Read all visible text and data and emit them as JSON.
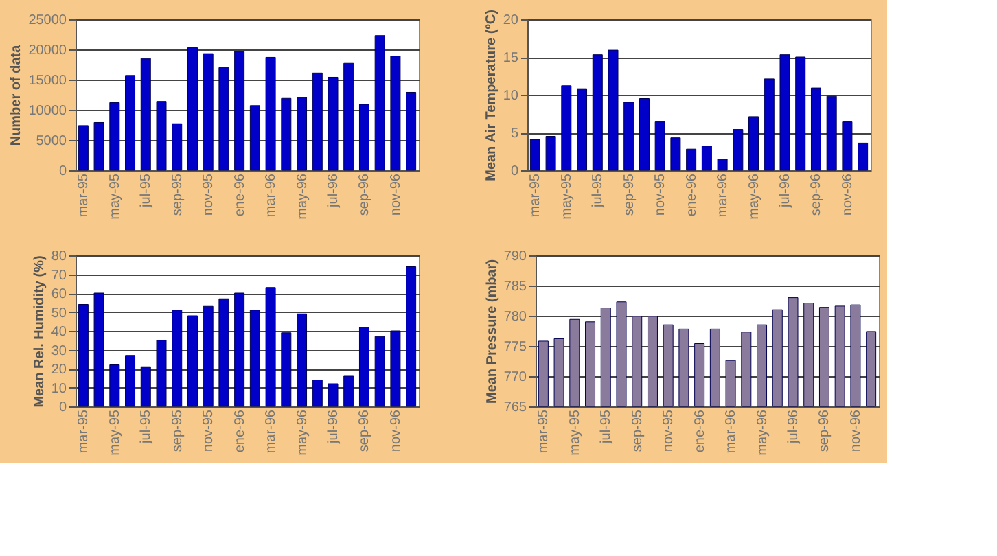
{
  "chart_data": [
    {
      "type": "bar",
      "ylabel": "Number of data",
      "color": "#0000c8",
      "grid": "y",
      "ylim": [
        0,
        25000
      ],
      "yticks": [
        0,
        5000,
        10000,
        15000,
        20000,
        25000
      ],
      "categories": [
        "mar-95",
        null,
        "may-95",
        null,
        "jul-95",
        null,
        "sep-95",
        null,
        "nov-95",
        null,
        "ene-96",
        null,
        "mar-96",
        null,
        "may-96",
        null,
        "jul-96",
        null,
        "sep-96",
        null,
        "nov-96",
        null
      ],
      "values": [
        7400,
        7900,
        11200,
        15700,
        18500,
        11400,
        7700,
        20300,
        19300,
        17000,
        19700,
        10700,
        18700,
        11900,
        12100,
        16100,
        15400,
        17700,
        10900,
        22300,
        18900,
        12900
      ]
    },
    {
      "type": "bar",
      "ylabel": "Mean Air Temperature (ºC)",
      "color": "#0000c8",
      "grid": "y",
      "ylim": [
        0,
        20
      ],
      "yticks": [
        0,
        5,
        10,
        15,
        20
      ],
      "categories": [
        "mar-95",
        null,
        "may-95",
        null,
        "jul-95",
        null,
        "sep-95",
        null,
        "nov-95",
        null,
        "ene-96",
        null,
        "mar-96",
        null,
        "may-96",
        null,
        "jul-96",
        null,
        "sep-96",
        null,
        "nov-96",
        null
      ],
      "values": [
        4.1,
        4.5,
        11.2,
        10.8,
        15.3,
        15.9,
        9.0,
        9.5,
        6.4,
        4.3,
        2.8,
        3.2,
        1.5,
        5.4,
        7.1,
        12.1,
        15.3,
        15.0,
        10.9,
        9.8,
        6.4,
        3.6
      ]
    },
    {
      "type": "bar",
      "ylabel": "Mean Rel. Humidity (%)",
      "color": "#0000c8",
      "grid": "y",
      "ylim": [
        0,
        80
      ],
      "yticks": [
        0,
        10,
        20,
        30,
        40,
        50,
        60,
        70,
        80
      ],
      "categories": [
        "mar-95",
        null,
        "may-95",
        null,
        "jul-95",
        null,
        "sep-95",
        null,
        "nov-95",
        null,
        "ene-96",
        null,
        "mar-96",
        null,
        "may-96",
        null,
        "jul-96",
        null,
        "sep-96",
        null,
        "nov-96",
        null
      ],
      "values": [
        54,
        60,
        22,
        27,
        21,
        35,
        51,
        48,
        53,
        57,
        60,
        51,
        63,
        39,
        49,
        14,
        12,
        16,
        42,
        37,
        40,
        74
      ]
    },
    {
      "type": "bar",
      "ylabel": "Mean Pressure (mbar)",
      "color": "#8a7a9c",
      "grid": "y",
      "ylim": [
        765,
        790
      ],
      "yticks": [
        765,
        770,
        775,
        780,
        785,
        790
      ],
      "categories": [
        "mar-95",
        null,
        "may-95",
        null,
        "jul-95",
        null,
        "sep-95",
        null,
        "nov-95",
        null,
        "ene-96",
        null,
        "mar-96",
        null,
        "may-96",
        null,
        "jul-96",
        null,
        "sep-96",
        null,
        "nov-96",
        null
      ],
      "values": [
        775.8,
        776.2,
        779.4,
        779.0,
        781.3,
        782.3,
        779.9,
        779.9,
        778.5,
        777.8,
        775.4,
        777.8,
        772.6,
        777.3,
        778.5,
        781.0,
        783.0,
        782.1,
        781.4,
        781.6,
        781.8,
        777.4
      ]
    }
  ]
}
